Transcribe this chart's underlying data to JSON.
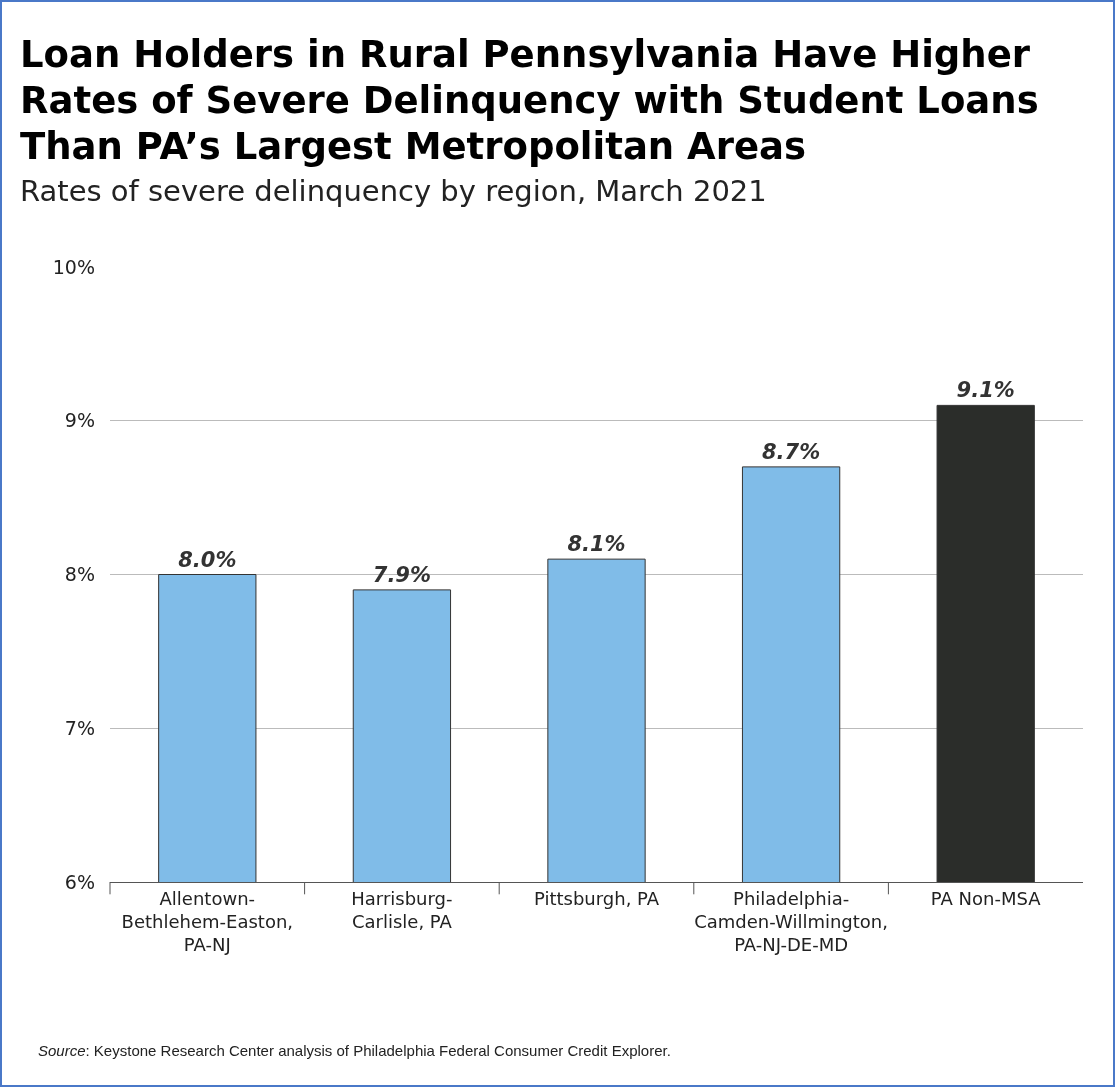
{
  "chart_data": {
    "type": "bar",
    "title": "Loan Holders in Rural Pennsylvania Have Higher Rates of Severe Delinquency with Student Loans Than PA’s Largest Metropolitan Areas",
    "subtitle": "Rates of severe delinquency by region, March 2021",
    "categories": [
      "Allentown-\nBethlehem-Easton,\nPA-NJ",
      "Harrisburg-\nCarlisle, PA",
      "Pittsburgh, PA",
      "Philadelphia-\nCamden-Willmington,\nPA-NJ-DE-MD",
      "PA Non-MSA"
    ],
    "values": [
      8.0,
      7.9,
      8.1,
      8.7,
      9.1
    ],
    "value_labels": [
      "8.0%",
      "7.9%",
      "8.1%",
      "8.7%",
      "9.1%"
    ],
    "colors": [
      "#80bce8",
      "#80bce8",
      "#80bce8",
      "#80bce8",
      "#2b2d2a"
    ],
    "ylim": [
      6,
      10
    ],
    "yticks": [
      {
        "value": 6,
        "label": "6%"
      },
      {
        "value": 7,
        "label": "7%"
      },
      {
        "value": 8,
        "label": "8%"
      },
      {
        "value": 9,
        "label": "9%"
      },
      {
        "value": 10,
        "label": "10%"
      }
    ],
    "grid": "y",
    "annotations": [
      "Source: Keystone Research Center analysis of Philadelphia Federal Consumer Credit Explorer."
    ]
  }
}
